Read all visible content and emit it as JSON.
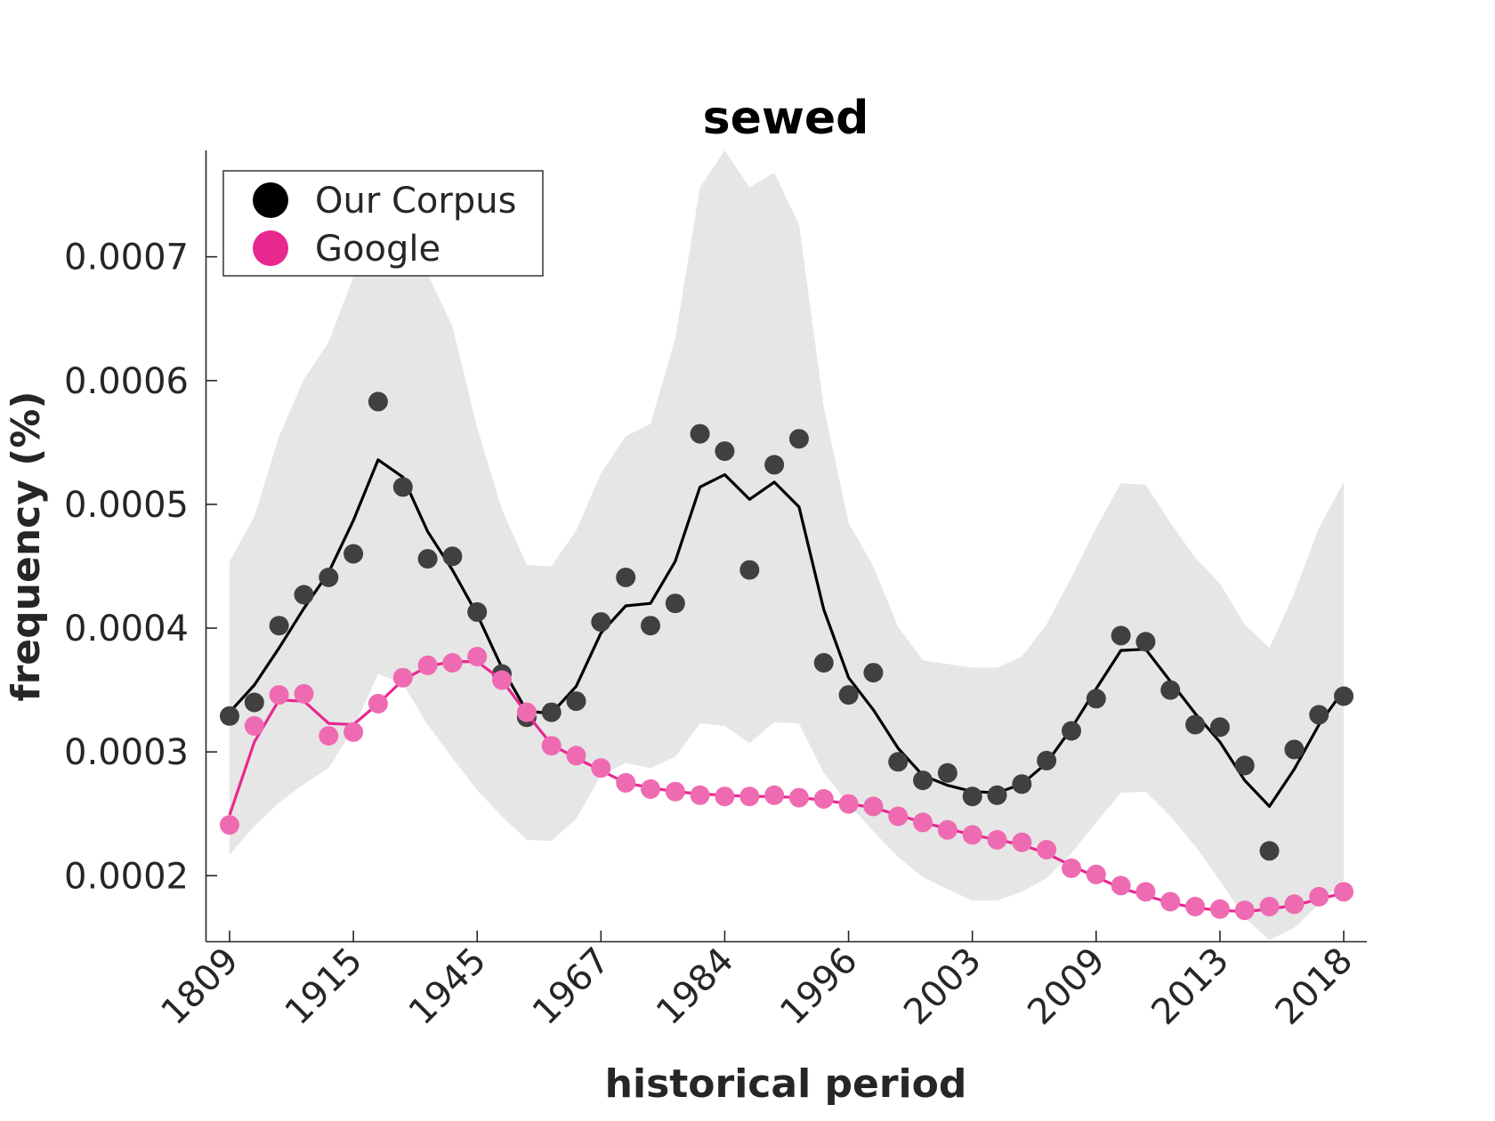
{
  "chart_data": {
    "type": "line",
    "title": "sewed",
    "xlabel": "historical period",
    "ylabel": "frequency (%)",
    "x_tick_labels": [
      "1809",
      "1915",
      "1945",
      "1967",
      "1984",
      "1996",
      "2003",
      "2009",
      "2013",
      "2018"
    ],
    "y_ticks": [
      0.0002,
      0.0003,
      0.0004,
      0.0005,
      0.0006,
      0.0007
    ],
    "y_tick_labels": [
      "0.0002",
      "0.0003",
      "0.0004",
      "0.0005",
      "0.0006",
      "0.0007"
    ],
    "ylim": [
      0.000147,
      0.000786
    ],
    "x_count": 46,
    "legend": {
      "placement": "top-left",
      "entries": [
        {
          "label": "Our Corpus",
          "color": "#000000"
        },
        {
          "label": "Google",
          "color": "#e8288f"
        }
      ]
    },
    "series": [
      {
        "name": "Our Corpus",
        "color": "#000000",
        "marker_color": "#404040",
        "points": [
          0.000329,
          0.00034,
          0.000402,
          0.000427,
          0.000441,
          0.00046,
          0.000583,
          0.000514,
          0.000456,
          0.000458,
          0.000413,
          0.000363,
          0.000328,
          0.000332,
          0.000341,
          0.000405,
          0.000441,
          0.000402,
          0.00042,
          0.000557,
          0.000543,
          0.000447,
          0.000532,
          0.000553,
          0.000372,
          0.000346,
          0.000364,
          0.000292,
          0.000277,
          0.000283,
          0.000264,
          0.000265,
          0.000274,
          0.000293,
          0.000317,
          0.000343,
          0.000394,
          0.000389,
          0.00035,
          0.000322,
          0.00032,
          0.000289,
          0.00022,
          0.000302,
          0.00033,
          0.000345
        ],
        "smoothed": [
          0.000332,
          0.000354,
          0.000384,
          0.000416,
          0.000445,
          0.000487,
          0.000536,
          0.000522,
          0.000478,
          0.000447,
          0.000411,
          0.000368,
          0.000333,
          0.000331,
          0.000353,
          0.000396,
          0.000418,
          0.00042,
          0.000454,
          0.000514,
          0.000524,
          0.000504,
          0.000518,
          0.000498,
          0.000415,
          0.00036,
          0.000334,
          0.000303,
          0.000281,
          0.000273,
          0.000268,
          0.000267,
          0.000274,
          0.000291,
          0.000319,
          0.000351,
          0.000382,
          0.000383,
          0.000357,
          0.000331,
          0.000308,
          0.000277,
          0.000256,
          0.000286,
          0.000322,
          0.00035
        ],
        "band_upper": [
          0.000454,
          0.00049,
          0.000555,
          0.000601,
          0.000631,
          0.000684,
          0.000732,
          0.00074,
          0.000686,
          0.000644,
          0.000562,
          0.000496,
          0.000451,
          0.00045,
          0.000479,
          0.000525,
          0.000555,
          0.000565,
          0.000634,
          0.000756,
          0.000786,
          0.000756,
          0.000768,
          0.000726,
          0.000579,
          0.000485,
          0.00045,
          0.000401,
          0.000374,
          0.000371,
          0.000368,
          0.000368,
          0.000377,
          0.000403,
          0.000441,
          0.000481,
          0.000517,
          0.000516,
          0.000485,
          0.000457,
          0.000436,
          0.000403,
          0.000384,
          0.000428,
          0.000481,
          0.000518
        ],
        "band_lower": [
          0.000217,
          0.00024,
          0.000259,
          0.000274,
          0.000287,
          0.000319,
          0.000363,
          0.000355,
          0.000322,
          0.000295,
          0.000269,
          0.000248,
          0.000229,
          0.000228,
          0.000246,
          0.000281,
          0.000291,
          0.000287,
          0.000296,
          0.000323,
          0.000321,
          0.000307,
          0.000324,
          0.000323,
          0.000283,
          0.000258,
          0.000236,
          0.000215,
          0.000199,
          0.000189,
          0.00018,
          0.00018,
          0.000187,
          0.000198,
          0.000218,
          0.000243,
          0.000267,
          0.000268,
          0.000248,
          0.000224,
          0.000196,
          0.000166,
          0.000148,
          0.000158,
          0.000177,
          0.000196
        ]
      },
      {
        "name": "Google",
        "color": "#e8288f",
        "marker_color": "#ee6bb2",
        "points": [
          0.000241,
          0.000321,
          0.000346,
          0.000347,
          0.000313,
          0.000316,
          0.000339,
          0.00036,
          0.00037,
          0.000372,
          0.000377,
          0.000358,
          0.000332,
          0.000305,
          0.000297,
          0.000287,
          0.000275,
          0.00027,
          0.000268,
          0.000265,
          0.000264,
          0.000264,
          0.000265,
          0.000263,
          0.000262,
          0.000258,
          0.000256,
          0.000248,
          0.000243,
          0.000237,
          0.000233,
          0.000229,
          0.000227,
          0.000221,
          0.000206,
          0.000201,
          0.000192,
          0.000187,
          0.000179,
          0.000175,
          0.000173,
          0.000172,
          0.000175,
          0.000177,
          0.000183,
          0.000187
        ],
        "smoothed": [
          0.000249,
          0.000308,
          0.000342,
          0.000341,
          0.000323,
          0.000322,
          0.000339,
          0.000358,
          0.000369,
          0.000373,
          0.000373,
          0.000358,
          0.000331,
          0.000306,
          0.000295,
          0.000285,
          0.000275,
          0.000271,
          0.000268,
          0.000266,
          0.000265,
          0.000264,
          0.000264,
          0.000263,
          0.000261,
          0.000258,
          0.000255,
          0.000249,
          0.000243,
          0.000238,
          0.000233,
          0.000229,
          0.000225,
          0.000218,
          0.000208,
          0.000199,
          0.00019,
          0.000184,
          0.000178,
          0.000174,
          0.000172,
          0.000171,
          0.000173,
          0.000176,
          0.000181,
          0.000186
        ]
      }
    ]
  }
}
